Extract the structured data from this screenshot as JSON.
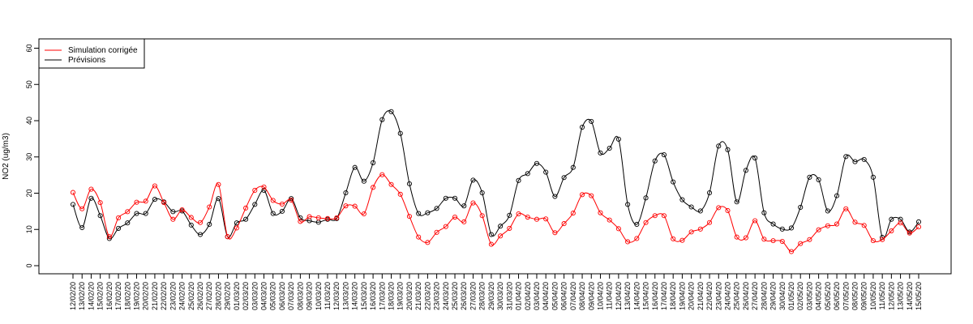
{
  "chart_data": {
    "type": "line",
    "ylabel": "NO2 (ug/m3)",
    "ylim": [
      0,
      60
    ],
    "yticks": [
      0,
      10,
      20,
      30,
      40,
      50,
      60
    ],
    "legend_position": "top-left",
    "categories": [
      "12/02/20",
      "13/02/20",
      "14/02/20",
      "15/02/20",
      "16/02/20",
      "17/02/20",
      "18/02/20",
      "19/02/20",
      "20/02/20",
      "21/02/20",
      "22/02/20",
      "23/02/20",
      "24/02/20",
      "25/02/20",
      "26/02/20",
      "27/02/20",
      "28/02/20",
      "29/02/20",
      "01/03/20",
      "02/03/20",
      "03/03/20",
      "04/03/20",
      "05/03/20",
      "06/03/20",
      "07/03/20",
      "08/03/20",
      "09/03/20",
      "10/03/20",
      "11/03/20",
      "12/03/20",
      "13/03/20",
      "14/03/20",
      "15/03/20",
      "16/03/20",
      "17/03/20",
      "18/03/20",
      "19/03/20",
      "20/03/20",
      "21/03/20",
      "22/03/20",
      "23/03/20",
      "24/03/20",
      "25/03/20",
      "26/03/20",
      "27/03/20",
      "28/03/20",
      "29/03/20",
      "30/03/20",
      "31/03/20",
      "01/04/20",
      "02/04/20",
      "03/04/20",
      "04/04/20",
      "05/04/20",
      "06/04/20",
      "07/04/20",
      "08/04/20",
      "09/04/20",
      "10/04/20",
      "11/04/20",
      "12/04/20",
      "13/04/20",
      "14/04/20",
      "15/04/20",
      "16/04/20",
      "17/04/20",
      "18/04/20",
      "19/04/20",
      "20/04/20",
      "21/04/20",
      "22/04/20",
      "23/04/20",
      "24/04/20",
      "25/04/20",
      "26/04/20",
      "27/04/20",
      "28/04/20",
      "29/04/20",
      "30/04/20",
      "01/05/20",
      "02/05/20",
      "03/05/20",
      "04/05/20",
      "05/05/20",
      "06/05/20",
      "07/05/20",
      "08/05/20",
      "09/05/20",
      "10/05/20",
      "11/05/20",
      "12/05/20",
      "13/05/20",
      "14/05/20",
      "15/05/20"
    ],
    "series": [
      {
        "name": "Simulation corrigée",
        "color": "#ff0000",
        "values": [
          20.2,
          15.7,
          21.1,
          17.4,
          8.0,
          13.2,
          14.9,
          17.5,
          17.8,
          22.0,
          17.4,
          12.8,
          15.4,
          13.3,
          11.9,
          16.2,
          22.4,
          8.0,
          10.4,
          15.9,
          20.8,
          21.7,
          18.0,
          17.0,
          18.1,
          12.2,
          13.5,
          13.2,
          13.0,
          13.2,
          16.5,
          16.4,
          14.3,
          21.6,
          25.1,
          22.4,
          19.7,
          13.6,
          7.9,
          6.4,
          9.2,
          10.8,
          13.4,
          12.1,
          17.3,
          13.8,
          5.9,
          8.2,
          10.3,
          14.3,
          13.4,
          12.8,
          12.9,
          9.1,
          11.6,
          14.5,
          19.6,
          19.3,
          14.6,
          12.6,
          10.2,
          6.6,
          7.5,
          11.9,
          13.8,
          13.8,
          7.4,
          7.0,
          9.3,
          10.1,
          11.9,
          16.0,
          15.2,
          7.9,
          7.7,
          12.4,
          7.3,
          6.9,
          6.7,
          3.9,
          6.1,
          7.2,
          9.9,
          11.0,
          11.5,
          15.7,
          12.0,
          11.1,
          6.9,
          7.2,
          9.6,
          11.8,
          9.0,
          10.7
        ]
      },
      {
        "name": "Prévisions",
        "color": "#000000",
        "values": [
          16.9,
          10.5,
          18.6,
          13.8,
          7.5,
          10.3,
          11.8,
          14.4,
          14.4,
          18.3,
          17.6,
          14.9,
          15.1,
          11.2,
          8.6,
          11.4,
          18.5,
          8.0,
          11.8,
          12.8,
          16.9,
          20.8,
          14.4,
          15.0,
          18.5,
          13.2,
          12.4,
          12.0,
          12.8,
          13.0,
          20.1,
          27.1,
          23.3,
          28.4,
          40.3,
          42.5,
          36.5,
          22.6,
          14.4,
          14.6,
          15.8,
          18.6,
          18.6,
          16.5,
          23.6,
          20.1,
          8.6,
          10.9,
          13.9,
          23.5,
          25.4,
          28.2,
          25.8,
          19.1,
          24.3,
          27.1,
          38.2,
          39.8,
          31.1,
          32.4,
          34.9,
          16.9,
          11.4,
          18.7,
          28.9,
          30.6,
          23.1,
          18.2,
          16.2,
          15.1,
          20.1,
          33.0,
          32.0,
          17.6,
          26.3,
          29.7,
          14.6,
          11.5,
          10.1,
          10.4,
          16.1,
          24.4,
          23.7,
          15.1,
          19.3,
          30.1,
          28.7,
          29.3,
          24.4,
          7.8,
          12.8,
          12.8,
          9.3,
          12.1
        ]
      }
    ]
  }
}
